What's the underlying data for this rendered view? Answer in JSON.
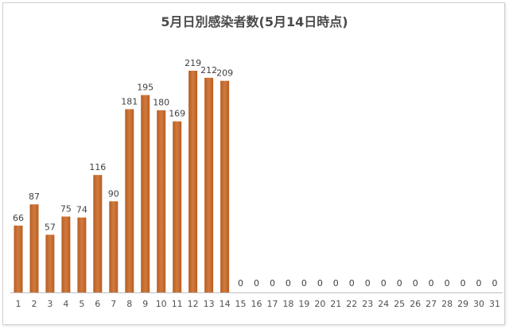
{
  "chart_data": {
    "type": "bar",
    "title": "5月日別感染者数(5月14日時点)",
    "xlabel": "",
    "ylabel": "",
    "categories": [
      "1",
      "2",
      "3",
      "4",
      "5",
      "6",
      "7",
      "8",
      "9",
      "10",
      "11",
      "12",
      "13",
      "14",
      "15",
      "16",
      "17",
      "18",
      "19",
      "20",
      "21",
      "22",
      "23",
      "24",
      "25",
      "26",
      "27",
      "28",
      "29",
      "30",
      "31"
    ],
    "values": [
      66,
      87,
      57,
      75,
      74,
      116,
      90,
      181,
      195,
      180,
      169,
      219,
      212,
      209,
      0,
      0,
      0,
      0,
      0,
      0,
      0,
      0,
      0,
      0,
      0,
      0,
      0,
      0,
      0,
      0,
      0
    ],
    "ylim": [
      0,
      260
    ],
    "grid": false,
    "legend": "none",
    "data_labels": true,
    "colors": {
      "bar_top": "#d27a3e",
      "bar_bottom": "#b85e22",
      "axis": "#bfbfbf",
      "text": "#404040"
    }
  }
}
